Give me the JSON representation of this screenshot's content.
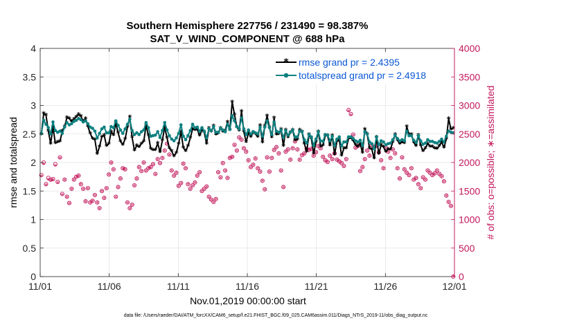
{
  "chart_data": {
    "type": "line",
    "title": "Southern Hemisphere 227756 / 231490 = 98.387%",
    "subtitle": "SAT_V_WIND_COMPONENT @ 688 hPa",
    "xlabel": "Nov.01,2019 00:00:00 start",
    "ylabel_left": "rmse and totalspread",
    "ylabel_right": "# of obs: o=possible; ∗=assimilated",
    "x_tick_labels": [
      "11/01",
      "11/06",
      "11/11",
      "11/16",
      "11/21",
      "11/26",
      "12/01"
    ],
    "x_tick_days": [
      0,
      5,
      10,
      15,
      20,
      25,
      30
    ],
    "y_left_ticks": [
      "0",
      "0.5",
      "1",
      "1.5",
      "2",
      "2.5",
      "3",
      "3.5",
      "4"
    ],
    "y_right_ticks": [
      "0",
      "500",
      "1000",
      "1500",
      "2000",
      "2500",
      "3000",
      "3500",
      "4000"
    ],
    "ylim_left": [
      0,
      4
    ],
    "ylim_right": [
      0,
      4000
    ],
    "xlim_days": [
      0,
      30
    ],
    "grid": true,
    "legend_position": "top-right",
    "footnote": "data file: /Users/raeder/DAI/ATM_forcXX/CAM6_setup/f.e21.FHIST_BGC.f09_025.CAM6assim.011/Diags_NTrS_2019-11/obs_diag_output.nc",
    "colors": {
      "rmse": "#000000",
      "spread": "#0e8080",
      "obs": "#c2185b",
      "legend_text": "#0a58d6",
      "right_axis": "#c2185b"
    },
    "series": [
      {
        "name": "rmse grand pr = 2.4395",
        "color": "#000000",
        "values": [
          2.49,
          2.86,
          2.83,
          2.55,
          2.33,
          2.62,
          2.34,
          2.36,
          2.37,
          2.55,
          2.63,
          2.79,
          2.77,
          2.72,
          2.76,
          2.8,
          2.84,
          2.81,
          2.72,
          2.77,
          2.63,
          2.51,
          2.42,
          2.4,
          2.15,
          2.28,
          2.45,
          2.48,
          2.29,
          2.33,
          2.54,
          2.48,
          2.69,
          2.52,
          2.37,
          2.31,
          2.41,
          2.62,
          2.8,
          2.44,
          2.21,
          2.3,
          2.27,
          2.33,
          2.37,
          2.65,
          2.48,
          2.24,
          2.22,
          2.22,
          2.34,
          2.18,
          2.39,
          2.62,
          2.43,
          2.25,
          2.2,
          2.11,
          2.17,
          2.33,
          2.54,
          2.26,
          2.2,
          2.29,
          2.43,
          2.59,
          2.57,
          2.58,
          2.47,
          2.57,
          2.53,
          2.33,
          2.6,
          2.54,
          2.64,
          2.49,
          2.51,
          2.6,
          2.54,
          2.56,
          2.71,
          2.57,
          3.06,
          2.84,
          2.62,
          2.56,
          2.9,
          2.54,
          2.36,
          2.52,
          2.45,
          2.53,
          2.5,
          2.45,
          2.65,
          2.35,
          2.64,
          2.82,
          2.62,
          2.44,
          2.78,
          2.49,
          2.5,
          2.58,
          2.29,
          2.57,
          2.44,
          2.53,
          2.57,
          2.39,
          2.4,
          2.57,
          2.54,
          2.33,
          2.19,
          2.49,
          2.42,
          2.16,
          2.36,
          2.54,
          2.28,
          2.3,
          2.47,
          2.47,
          2.3,
          2.47,
          2.14,
          2.37,
          2.4,
          2.12,
          2.25,
          2.25,
          2.42,
          2.43,
          2.38,
          2.31,
          2.28,
          2.33,
          2.17,
          2.58,
          2.5,
          2.25,
          2.23,
          2.07,
          2.44,
          2.15,
          2.31,
          2.27,
          2.19,
          2.23,
          2.23,
          2.36,
          2.49,
          2.39,
          2.33,
          2.36,
          2.34,
          2.63,
          2.49,
          2.49,
          2.35,
          2.29,
          2.48,
          2.3,
          2.2,
          2.25,
          2.33,
          2.28,
          2.28,
          2.25,
          2.24,
          2.29,
          2.36,
          2.26,
          2.41,
          2.77,
          2.58,
          2.6
        ]
      },
      {
        "name": "totalspread grand pr = 2.4918",
        "color": "#0e8080",
        "values": [
          2.51,
          2.74,
          2.67,
          2.61,
          2.5,
          2.71,
          2.56,
          2.53,
          2.55,
          2.51,
          2.62,
          2.7,
          2.66,
          2.68,
          2.72,
          2.74,
          2.77,
          2.75,
          2.71,
          2.73,
          2.68,
          2.62,
          2.6,
          2.55,
          2.43,
          2.51,
          2.59,
          2.62,
          2.52,
          2.52,
          2.63,
          2.61,
          2.73,
          2.65,
          2.57,
          2.51,
          2.59,
          2.67,
          2.76,
          2.56,
          2.49,
          2.52,
          2.49,
          2.54,
          2.57,
          2.7,
          2.61,
          2.46,
          2.47,
          2.48,
          2.54,
          2.44,
          2.56,
          2.7,
          2.57,
          2.47,
          2.41,
          2.38,
          2.43,
          2.51,
          2.66,
          2.46,
          2.4,
          2.47,
          2.56,
          2.67,
          2.61,
          2.62,
          2.55,
          2.61,
          2.55,
          2.43,
          2.59,
          2.56,
          2.63,
          2.53,
          2.53,
          2.6,
          2.57,
          2.54,
          2.67,
          2.58,
          2.82,
          2.73,
          2.63,
          2.59,
          2.78,
          2.59,
          2.49,
          2.57,
          2.5,
          2.54,
          2.52,
          2.5,
          2.62,
          2.46,
          2.62,
          2.73,
          2.61,
          2.49,
          2.71,
          2.55,
          2.53,
          2.57,
          2.44,
          2.56,
          2.48,
          2.53,
          2.57,
          2.45,
          2.45,
          2.55,
          2.54,
          2.4,
          2.34,
          2.49,
          2.45,
          2.3,
          2.41,
          2.54,
          2.38,
          2.37,
          2.49,
          2.48,
          2.38,
          2.46,
          2.3,
          2.41,
          2.45,
          2.29,
          2.36,
          2.36,
          2.45,
          2.45,
          2.42,
          2.38,
          2.36,
          2.39,
          2.3,
          2.54,
          2.5,
          2.36,
          2.33,
          2.24,
          2.45,
          2.31,
          2.38,
          2.36,
          2.31,
          2.33,
          2.34,
          2.4,
          2.48,
          2.42,
          2.38,
          2.4,
          2.38,
          2.55,
          2.47,
          2.47,
          2.39,
          2.35,
          2.47,
          2.38,
          2.32,
          2.34,
          2.4,
          2.37,
          2.37,
          2.35,
          2.34,
          2.37,
          2.41,
          2.36,
          2.46,
          2.55,
          2.53,
          2.52
        ]
      }
    ],
    "obs_counts": {
      "possible_values": [
        1780,
        2000,
        1620,
        1730,
        1700,
        1710,
        1970,
        1660,
        2090,
        1450,
        1700,
        1400,
        1290,
        1540,
        1700,
        1750,
        1770,
        1620,
        1540,
        1320,
        1550,
        1300,
        1330,
        1430,
        1300,
        1200,
        1500,
        1380,
        1550,
        1790,
        2000,
        1880,
        1400,
        1570,
        1720,
        1900,
        1880,
        1300,
        1200,
        1260,
        1600,
        1720,
        1920,
        1850,
        2000,
        1860,
        1900,
        1920,
        1970,
        1800,
        2060,
        1990,
        2080,
        2210,
        2330,
        2140,
        1860,
        1770,
        1820,
        1590,
        1640,
        1980,
        1900,
        1620,
        1540,
        1600,
        1650,
        1770,
        1830,
        1500,
        1540,
        1580,
        1400,
        1350,
        1310,
        1360,
        1830,
        1740,
        1990,
        1860,
        1730,
        2080,
        2100,
        2310,
        2210,
        2440,
        2400,
        2250,
        2190,
        2040,
        1920,
        1960,
        2070,
        1900,
        1840,
        1680,
        1530,
        2090,
        1840,
        2080,
        2220,
        2270,
        2160,
        1860,
        1570,
        2190,
        2230,
        2050,
        2250,
        2370,
        2230,
        2050,
        2130,
        2160,
        2240,
        2220,
        2240,
        2120,
        2180,
        2290,
        2250,
        2100,
        2040,
        2010,
        2120,
        2060,
        2160,
        2050,
        2020,
        1990,
        1940,
        2060,
        2920,
        2850,
        2490,
        2260,
        2290,
        1850,
        1920,
        2060,
        2210,
        2120,
        2300,
        2270,
        2290,
        2180,
        2040,
        1900,
        2260,
        2190,
        2080,
        2230,
        2160,
        1900,
        1720,
        2090,
        1880,
        1820,
        1780,
        1900,
        1700,
        1730,
        1620,
        1550,
        1740,
        1700,
        1860,
        1820,
        1780,
        1810,
        1860,
        1800,
        1760,
        1670,
        1420,
        1310,
        1240,
        0
      ],
      "assimilated_values": [
        1760,
        1970,
        1600,
        1700,
        1680,
        1690,
        1940,
        1640,
        2070,
        1430,
        1690,
        1390,
        1280,
        1530,
        1690,
        1740,
        1760,
        1610,
        1530,
        1310,
        1540,
        1290,
        1320,
        1420,
        1290,
        1190,
        1490,
        1370,
        1540,
        1780,
        1990,
        1870,
        1390,
        1560,
        1710,
        1890,
        1870,
        1290,
        1190,
        1250,
        1590,
        1710,
        1910,
        1840,
        1990,
        1850,
        1890,
        1910,
        1960,
        1790,
        2050,
        1980,
        2070,
        2200,
        2320,
        2130,
        1850,
        1760,
        1810,
        1580,
        1630,
        1970,
        1890,
        1610,
        1530,
        1590,
        1640,
        1760,
        1820,
        1490,
        1530,
        1570,
        1390,
        1340,
        1300,
        1350,
        1820,
        1730,
        1980,
        1850,
        1720,
        2070,
        2090,
        2300,
        2200,
        2430,
        2390,
        2240,
        2180,
        2030,
        1910,
        1950,
        2060,
        1890,
        1830,
        1670,
        1520,
        2080,
        1830,
        2070,
        2210,
        2260,
        2150,
        1850,
        1560,
        2180,
        2220,
        2040,
        2240,
        2360,
        2220,
        2040,
        2120,
        2150,
        2230,
        2210,
        2230,
        2110,
        2170,
        2280,
        2240,
        2090,
        2030,
        2000,
        2110,
        2050,
        2150,
        2040,
        2010,
        1980,
        1930,
        2050,
        2900,
        2830,
        2470,
        2250,
        2280,
        1840,
        1910,
        2050,
        2200,
        2110,
        2290,
        2260,
        2280,
        2170,
        2030,
        1890,
        2250,
        2180,
        2070,
        2220,
        2150,
        1890,
        1710,
        2080,
        1870,
        1810,
        1770,
        1890,
        1690,
        1720,
        1610,
        1540,
        1730,
        1690,
        1850,
        1810,
        1770,
        1800,
        1850,
        1790,
        1750,
        1660,
        1410,
        1300,
        1230,
        0
      ]
    }
  }
}
